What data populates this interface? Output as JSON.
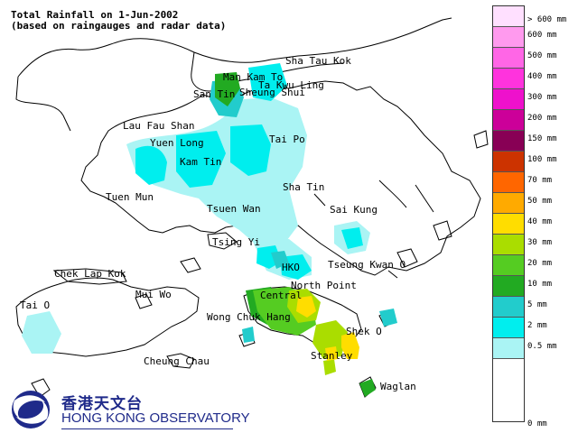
{
  "title": {
    "line1": "Total Rainfall on 1-Jun-2002",
    "line2": "(based on raingauges and radar data)"
  },
  "places": [
    {
      "id": "sha-tau-kok",
      "label": "Sha Tau Kok"
    },
    {
      "id": "man-kam-to",
      "label": "Man Kam To"
    },
    {
      "id": "ta-kwu-ling",
      "label": "Ta Kwu Ling"
    },
    {
      "id": "san-tin",
      "label": "San Tin"
    },
    {
      "id": "sheung-shui",
      "label": "Sheung Shui"
    },
    {
      "id": "lau-fau-shan",
      "label": "Lau Fau Shan"
    },
    {
      "id": "tai-po",
      "label": "Tai Po"
    },
    {
      "id": "yuen-long",
      "label": "Yuen Long"
    },
    {
      "id": "kam-tin",
      "label": "Kam Tin"
    },
    {
      "id": "sha-tin",
      "label": "Sha Tin"
    },
    {
      "id": "tuen-mun",
      "label": "Tuen Mun"
    },
    {
      "id": "sai-kung",
      "label": "Sai Kung"
    },
    {
      "id": "tsuen-wan",
      "label": "Tsuen Wan"
    },
    {
      "id": "tsing-yi",
      "label": "Tsing Yi"
    },
    {
      "id": "hko",
      "label": "HKO"
    },
    {
      "id": "tseung-kwan-o",
      "label": "Tseung Kwan O"
    },
    {
      "id": "chek-lap-kok",
      "label": "Chek Lap Kok"
    },
    {
      "id": "north-point",
      "label": "North Point"
    },
    {
      "id": "mui-wo",
      "label": "Mui Wo"
    },
    {
      "id": "central",
      "label": "Central"
    },
    {
      "id": "tai-o",
      "label": "Tai O"
    },
    {
      "id": "wong-chuk-hang",
      "label": "Wong Chuk Hang"
    },
    {
      "id": "shek-o",
      "label": "Shek O"
    },
    {
      "id": "stanley",
      "label": "Stanley"
    },
    {
      "id": "cheung-chau",
      "label": "Cheung Chau"
    },
    {
      "id": "waglan",
      "label": "Waglan"
    }
  ],
  "legend": {
    "bins": [
      {
        "label": "> 600 mm",
        "color": "#ffe0ff"
      },
      {
        "label": "600 mm",
        "color": "#ff9aee"
      },
      {
        "label": "500 mm",
        "color": "#ff66e6"
      },
      {
        "label": "400 mm",
        "color": "#ff33dd"
      },
      {
        "label": "300 mm",
        "color": "#ee11cc"
      },
      {
        "label": "200 mm",
        "color": "#cc0099"
      },
      {
        "label": "150 mm",
        "color": "#880055"
      },
      {
        "label": "100 mm",
        "color": "#cc3300"
      },
      {
        "label": "70 mm",
        "color": "#ff6600"
      },
      {
        "label": "50 mm",
        "color": "#ffaa00"
      },
      {
        "label": "40 mm",
        "color": "#ffdd00"
      },
      {
        "label": "30 mm",
        "color": "#aadd00"
      },
      {
        "label": "20 mm",
        "color": "#55cc22"
      },
      {
        "label": "10 mm",
        "color": "#22aa22"
      },
      {
        "label": "5 mm",
        "color": "#22cccc"
      },
      {
        "label": "2 mm",
        "color": "#00eeee"
      },
      {
        "label": "0.5 mm",
        "color": "#aaf4f4"
      },
      {
        "label": "",
        "color": "#ffffff"
      }
    ],
    "bottom_label": "0 mm"
  },
  "logo": {
    "chinese": "香港天文台",
    "english": "Hong Kong Observatory",
    "brand_color": "#1f2a8a"
  }
}
